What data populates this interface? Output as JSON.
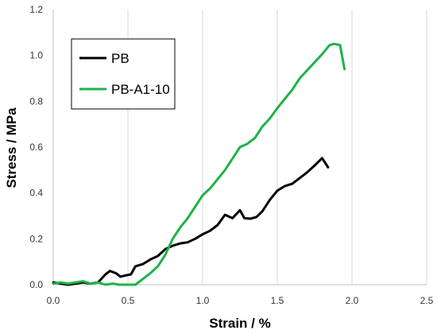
{
  "chart_data": {
    "type": "line",
    "xlabel": "Strain / %",
    "ylabel": "Stress / MPa",
    "xlim": [
      0,
      2.5
    ],
    "ylim": [
      0,
      1.2
    ],
    "x_ticks": [
      "0.0",
      "0.5",
      "1.0",
      "1.5",
      "2.0",
      "2.5"
    ],
    "y_ticks": [
      "0.0",
      "0.2",
      "0.4",
      "0.6",
      "0.8",
      "1.0",
      "1.2"
    ],
    "grid": "vertical",
    "legend": "top-left",
    "series": [
      {
        "name": "PB",
        "color": "#000000",
        "points": [
          [
            0.0,
            0.01
          ],
          [
            0.05,
            0.005
          ],
          [
            0.1,
            0.0
          ],
          [
            0.15,
            0.005
          ],
          [
            0.2,
            0.01
          ],
          [
            0.25,
            0.005
          ],
          [
            0.3,
            0.01
          ],
          [
            0.35,
            0.045
          ],
          [
            0.38,
            0.06
          ],
          [
            0.42,
            0.05
          ],
          [
            0.45,
            0.035
          ],
          [
            0.48,
            0.04
          ],
          [
            0.52,
            0.045
          ],
          [
            0.55,
            0.08
          ],
          [
            0.6,
            0.09
          ],
          [
            0.65,
            0.11
          ],
          [
            0.7,
            0.125
          ],
          [
            0.75,
            0.155
          ],
          [
            0.8,
            0.17
          ],
          [
            0.85,
            0.18
          ],
          [
            0.9,
            0.185
          ],
          [
            0.95,
            0.2
          ],
          [
            1.0,
            0.22
          ],
          [
            1.05,
            0.235
          ],
          [
            1.1,
            0.26
          ],
          [
            1.15,
            0.305
          ],
          [
            1.2,
            0.29
          ],
          [
            1.25,
            0.325
          ],
          [
            1.28,
            0.29
          ],
          [
            1.32,
            0.288
          ],
          [
            1.36,
            0.295
          ],
          [
            1.4,
            0.32
          ],
          [
            1.45,
            0.37
          ],
          [
            1.5,
            0.41
          ],
          [
            1.55,
            0.43
          ],
          [
            1.6,
            0.44
          ],
          [
            1.65,
            0.465
          ],
          [
            1.7,
            0.49
          ],
          [
            1.75,
            0.52
          ],
          [
            1.8,
            0.552
          ],
          [
            1.84,
            0.512
          ]
        ]
      },
      {
        "name": "PB-A1-10",
        "color": "#1db34a",
        "points": [
          [
            0.0,
            0.005
          ],
          [
            0.05,
            0.01
          ],
          [
            0.1,
            0.005
          ],
          [
            0.15,
            0.01
          ],
          [
            0.2,
            0.015
          ],
          [
            0.25,
            0.005
          ],
          [
            0.3,
            0.01
          ],
          [
            0.35,
            0.0
          ],
          [
            0.4,
            0.005
          ],
          [
            0.44,
            0.0
          ],
          [
            0.55,
            0.0
          ],
          [
            0.6,
            0.025
          ],
          [
            0.65,
            0.05
          ],
          [
            0.7,
            0.08
          ],
          [
            0.75,
            0.13
          ],
          [
            0.8,
            0.2
          ],
          [
            0.85,
            0.25
          ],
          [
            0.9,
            0.29
          ],
          [
            0.95,
            0.34
          ],
          [
            1.0,
            0.39
          ],
          [
            1.05,
            0.42
          ],
          [
            1.1,
            0.46
          ],
          [
            1.15,
            0.5
          ],
          [
            1.2,
            0.55
          ],
          [
            1.25,
            0.6
          ],
          [
            1.3,
            0.615
          ],
          [
            1.35,
            0.64
          ],
          [
            1.4,
            0.69
          ],
          [
            1.45,
            0.725
          ],
          [
            1.5,
            0.77
          ],
          [
            1.55,
            0.81
          ],
          [
            1.6,
            0.85
          ],
          [
            1.65,
            0.9
          ],
          [
            1.7,
            0.935
          ],
          [
            1.75,
            0.97
          ],
          [
            1.8,
            1.005
          ],
          [
            1.85,
            1.045
          ],
          [
            1.88,
            1.05
          ],
          [
            1.92,
            1.045
          ],
          [
            1.95,
            0.94
          ]
        ]
      }
    ]
  }
}
